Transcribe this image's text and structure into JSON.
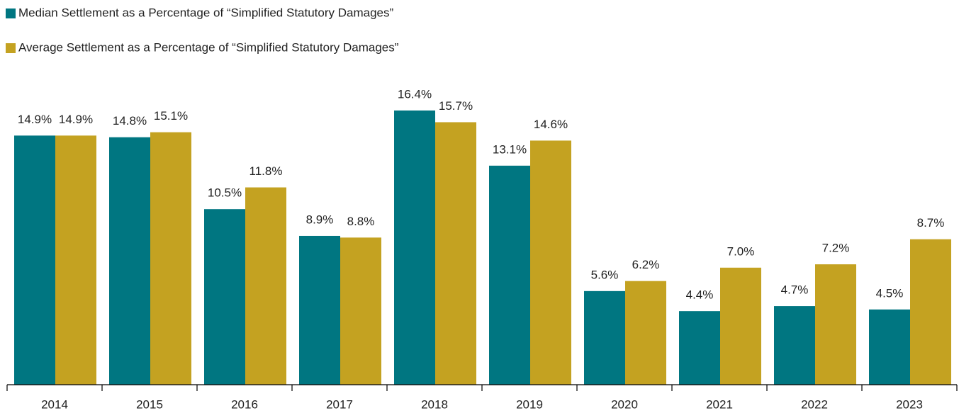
{
  "chart_data": {
    "type": "bar",
    "categories": [
      "2014",
      "2015",
      "2016",
      "2017",
      "2018",
      "2019",
      "2020",
      "2021",
      "2022",
      "2023"
    ],
    "series": [
      {
        "name": "Median Settlement as a Percentage of “Simplified Statutory Damages”",
        "color": "#007681",
        "values": [
          14.9,
          14.8,
          10.5,
          8.9,
          16.4,
          13.1,
          5.6,
          4.4,
          4.7,
          4.5
        ],
        "value_labels": [
          "14.9%",
          "14.8%",
          "10.5%",
          "8.9%",
          "16.4%",
          "13.1%",
          "5.6%",
          "4.4%",
          "4.7%",
          "4.5%"
        ]
      },
      {
        "name": "Average Settlement as a Percentage of “Simplified Statutory Damages”",
        "color": "#c4a221",
        "values": [
          14.9,
          15.1,
          11.8,
          8.8,
          15.7,
          14.6,
          6.2,
          7.0,
          7.2,
          8.7
        ],
        "value_labels": [
          "14.9%",
          "15.1%",
          "11.8%",
          "8.8%",
          "15.7%",
          "14.6%",
          "6.2%",
          "7.0%",
          "7.2%",
          "8.7%"
        ]
      }
    ],
    "ylim": [
      0,
      20
    ],
    "legend": "top-left"
  }
}
